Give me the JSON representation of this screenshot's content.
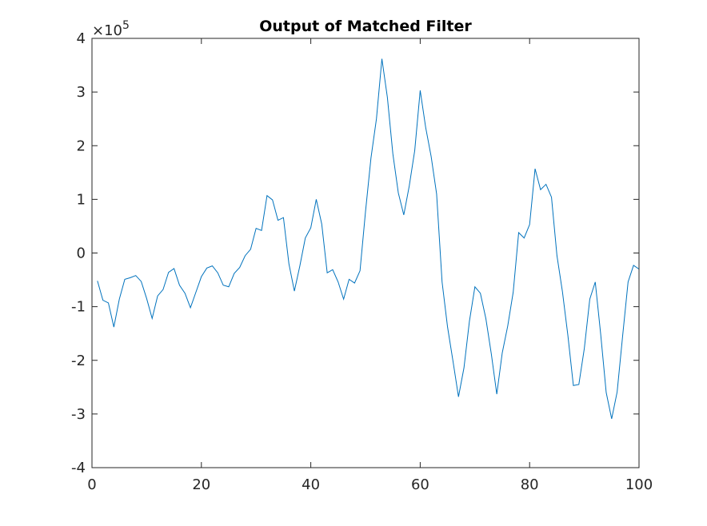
{
  "chart_data": {
    "type": "line",
    "title": "Output of Matched Filter",
    "xlabel": "",
    "ylabel": "",
    "xlim": [
      0,
      100
    ],
    "ylim": [
      -4,
      4
    ],
    "y_exponent_label": "×10",
    "y_exponent_power": "5",
    "xticks": [
      0,
      20,
      40,
      60,
      80,
      100
    ],
    "xtick_labels": [
      "0",
      "20",
      "40",
      "60",
      "80",
      "100"
    ],
    "yticks": [
      -4,
      -3,
      -2,
      -1,
      0,
      1,
      2,
      3,
      4
    ],
    "ytick_labels": [
      "-4",
      "-3",
      "-2",
      "-1",
      "0",
      "1",
      "2",
      "3",
      "4"
    ],
    "grid": false,
    "line_color": "#0072bd",
    "series": [
      {
        "x": [
          1,
          2,
          3,
          4,
          5,
          6,
          7,
          8,
          9,
          10,
          11,
          12,
          13,
          14,
          15,
          16,
          17,
          18,
          19,
          20,
          21,
          22,
          23,
          24,
          25,
          26,
          27,
          28,
          29,
          30,
          31,
          32,
          33,
          34,
          35,
          36,
          37,
          38,
          39,
          40,
          41,
          42,
          43,
          44,
          45,
          46,
          47,
          48,
          49,
          50,
          51,
          52,
          53,
          54,
          55,
          56,
          57,
          58,
          59,
          60,
          61,
          62,
          63,
          64,
          65,
          66,
          67,
          68,
          69,
          70,
          71,
          72,
          73,
          74,
          75,
          76,
          77,
          78,
          79,
          80,
          81,
          82,
          83,
          84,
          85,
          86,
          87,
          88,
          89,
          90,
          91,
          92,
          93,
          94,
          95,
          96,
          97,
          98,
          99,
          100
        ],
        "y": [
          -0.52,
          -0.88,
          -0.93,
          -1.38,
          -0.86,
          -0.49,
          -0.46,
          -0.42,
          -0.53,
          -0.85,
          -1.22,
          -0.8,
          -0.68,
          -0.36,
          -0.29,
          -0.6,
          -0.75,
          -1.02,
          -0.73,
          -0.44,
          -0.28,
          -0.24,
          -0.37,
          -0.6,
          -0.63,
          -0.38,
          -0.27,
          -0.05,
          0.07,
          0.46,
          0.42,
          1.07,
          0.99,
          0.61,
          0.66,
          -0.2,
          -0.71,
          -0.24,
          0.28,
          0.47,
          1.0,
          0.54,
          -0.37,
          -0.31,
          -0.54,
          -0.86,
          -0.49,
          -0.56,
          -0.33,
          0.77,
          1.77,
          2.5,
          3.62,
          2.9,
          1.85,
          1.12,
          0.71,
          1.25,
          1.91,
          3.03,
          2.34,
          1.8,
          1.1,
          -0.54,
          -1.38,
          -2.02,
          -2.68,
          -2.14,
          -1.27,
          -0.63,
          -0.75,
          -1.22,
          -1.88,
          -2.63,
          -1.86,
          -1.36,
          -0.73,
          0.38,
          0.28,
          0.53,
          1.57,
          1.18,
          1.28,
          1.04,
          -0.05,
          -0.72,
          -1.54,
          -2.47,
          -2.45,
          -1.78,
          -0.86,
          -0.54,
          -1.52,
          -2.6,
          -3.09,
          -2.59,
          -1.55,
          -0.54,
          -0.23,
          -0.3
        ]
      }
    ]
  }
}
